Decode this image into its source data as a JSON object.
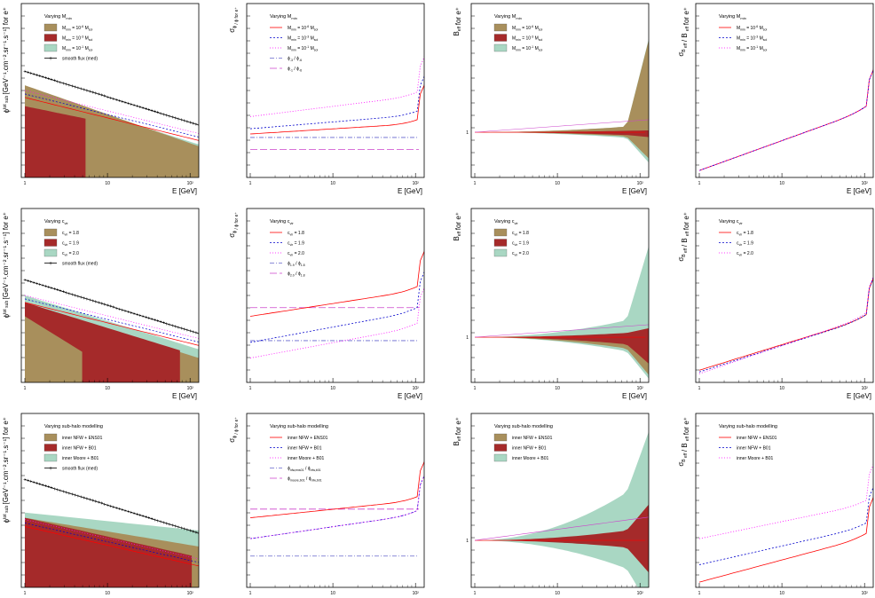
{
  "chart_data": [
    {
      "type": "area",
      "row": 0,
      "col": 0,
      "ylabel": "ϕ",
      "ylabel_parts": [
        "ϕ",
        "tot",
        "sub",
        "[GeV⁻¹.cm⁻².sr⁻¹.s⁻¹] for e⁺"
      ],
      "xlabel": "E [GeV]",
      "xticks": [
        "1",
        "10",
        "10²"
      ],
      "legend_title": "Varying M",
      "legend_title_sub": "min",
      "legend": [
        {
          "label": "M",
          "sub": "min",
          "rest": "= 10",
          "sup": "-6",
          "unit": "M",
          "unit_sub": "sol",
          "kind": "band",
          "color": "#A88F5C"
        },
        {
          "label": "M",
          "sub": "min",
          "rest": "= 10",
          "sup": "-3",
          "unit": "M",
          "unit_sub": "sol",
          "kind": "band",
          "color": "#A52A2A"
        },
        {
          "label": "M",
          "sub": "min",
          "rest": "= 10",
          "sup": "-1",
          "unit": "M",
          "unit_sub": "sol",
          "kind": "band",
          "color": "#A9D7C3"
        },
        {
          "label": "smooth flux (med)",
          "kind": "marker",
          "color": "#333333"
        }
      ]
    },
    {
      "type": "line",
      "row": 0,
      "col": 1,
      "ylabel": "σ",
      "ylabel_parts": [
        "σ",
        "ϕ",
        "/ ϕ for e⁺"
      ],
      "xlabel": "E [GeV]",
      "xticks": [
        "1",
        "10",
        "10²"
      ],
      "legend_title": "Varying M",
      "legend_title_sub": "min",
      "legend": [
        {
          "label": "M",
          "sub": "min",
          "rest": "= 10",
          "sup": "-6",
          "unit": "M",
          "unit_sub": "sol",
          "color": "#FF0000",
          "dash": ""
        },
        {
          "label": "M",
          "sub": "min",
          "rest": "= 10",
          "sup": "-3",
          "unit": "M",
          "unit_sub": "sol",
          "color": "#0000CC",
          "dash": "2,2"
        },
        {
          "label": "M",
          "sub": "min",
          "rest": "= 10",
          "sup": "-1",
          "unit": "M",
          "unit_sub": "sol",
          "color": "#FF00FF",
          "dash": "1,2"
        },
        {
          "label": "ϕ",
          "sub": "-3",
          "rest": "/ ϕ",
          "sup": "",
          "unit": "",
          "unit_sub": "-6",
          "color": "#6666CC",
          "dash": "5,2,1,2"
        },
        {
          "label": "ϕ",
          "sub": "-1",
          "rest": "/ ϕ",
          "sup": "",
          "unit": "",
          "unit_sub": "-6",
          "color": "#CC44CC",
          "dash": "8,3"
        }
      ]
    },
    {
      "type": "area",
      "row": 0,
      "col": 2,
      "ylabel": "B",
      "ylabel_parts": [
        "B",
        "eff",
        "for e⁺"
      ],
      "xlabel": "E [GeV]",
      "xticks": [
        "1",
        "10",
        "10²"
      ],
      "legend_title": "Varying M",
      "legend_title_sub": "min",
      "legend": [
        {
          "label": "M",
          "sub": "min",
          "rest": "= 10",
          "sup": "-6",
          "unit": "M",
          "unit_sub": "sol",
          "kind": "band",
          "color": "#A88F5C"
        },
        {
          "label": "M",
          "sub": "min",
          "rest": "= 10",
          "sup": "-3",
          "unit": "M",
          "unit_sub": "sol",
          "kind": "band",
          "color": "#A52A2A"
        },
        {
          "label": "M",
          "sub": "min",
          "rest": "= 10",
          "sup": "-1",
          "unit": "M",
          "unit_sub": "sol",
          "kind": "band",
          "color": "#A9D7C3"
        }
      ]
    },
    {
      "type": "line",
      "row": 0,
      "col": 3,
      "ylabel": "σ",
      "ylabel_parts": [
        "σ",
        "B",
        "eff",
        "/ B",
        "eff",
        "for e⁺"
      ],
      "xlabel": "E [GeV]",
      "xticks": [
        "1",
        "10",
        "10²"
      ],
      "legend_title": "Varying M",
      "legend_title_sub": "min",
      "legend": [
        {
          "label": "M",
          "sub": "min",
          "rest": "= 10",
          "sup": "-6",
          "unit": "M",
          "unit_sub": "sol",
          "color": "#FF0000",
          "dash": ""
        },
        {
          "label": "M",
          "sub": "min",
          "rest": "= 10",
          "sup": "-3",
          "unit": "M",
          "unit_sub": "sol",
          "color": "#0000CC",
          "dash": "2,2"
        },
        {
          "label": "M",
          "sub": "min",
          "rest": "= 10",
          "sup": "-1",
          "unit": "M",
          "unit_sub": "sol",
          "color": "#FF00FF",
          "dash": "1,2"
        }
      ]
    },
    {
      "type": "area",
      "row": 1,
      "col": 0,
      "ylabel": "ϕ",
      "ylabel_parts": [
        "ϕ",
        "tot",
        "sub",
        "[GeV⁻¹.cm⁻².sr⁻¹.s⁻¹] for e⁺"
      ],
      "xlabel": "E [GeV]",
      "xticks": [
        "1",
        "10",
        "10²"
      ],
      "legend_title": "Varying c",
      "legend_title_sub": "vir",
      "legend": [
        {
          "label": "c",
          "sub": "vir",
          "rest": "= 1.8",
          "kind": "band",
          "color": "#A88F5C"
        },
        {
          "label": "c",
          "sub": "vir",
          "rest": "= 1.9",
          "kind": "band",
          "color": "#A52A2A"
        },
        {
          "label": "c",
          "sub": "vir",
          "rest": "= 2.0",
          "kind": "band",
          "color": "#A9D7C3"
        },
        {
          "label": "smooth flux (med)",
          "kind": "marker",
          "color": "#333333"
        }
      ]
    },
    {
      "type": "line",
      "row": 1,
      "col": 1,
      "ylabel": "σ",
      "ylabel_parts": [
        "σ",
        "ϕ",
        "/ ϕ for e⁺"
      ],
      "xlabel": "E [GeV]",
      "xticks": [
        "1",
        "10",
        "10²"
      ],
      "legend_title": "Varying c",
      "legend_title_sub": "vir",
      "legend": [
        {
          "label": "c",
          "sub": "vir",
          "rest": "= 1.8",
          "color": "#FF0000",
          "dash": ""
        },
        {
          "label": "c",
          "sub": "vir",
          "rest": "= 1.9",
          "color": "#0000CC",
          "dash": "2,2"
        },
        {
          "label": "c",
          "sub": "vir",
          "rest": "= 2.0",
          "color": "#FF00FF",
          "dash": "1,2"
        },
        {
          "label": "ϕ",
          "sub": "1.9",
          "rest": "/ ϕ",
          "unit_sub": "1.8",
          "color": "#6666CC",
          "dash": "5,2,1,2"
        },
        {
          "label": "ϕ",
          "sub": "2.0",
          "rest": "/ ϕ",
          "unit_sub": "1.8",
          "color": "#CC44CC",
          "dash": "8,3"
        }
      ]
    },
    {
      "type": "area",
      "row": 1,
      "col": 2,
      "ylabel": "B",
      "ylabel_parts": [
        "B",
        "eff",
        "for e⁺"
      ],
      "xlabel": "E [GeV]",
      "xticks": [
        "1",
        "10",
        "10²"
      ],
      "legend_title": "Varying c",
      "legend_title_sub": "vir",
      "legend": [
        {
          "label": "c",
          "sub": "vir",
          "rest": "= 1.8",
          "kind": "band",
          "color": "#A88F5C"
        },
        {
          "label": "c",
          "sub": "vir",
          "rest": "= 1.9",
          "kind": "band",
          "color": "#A52A2A"
        },
        {
          "label": "c",
          "sub": "vir",
          "rest": "= 2.0",
          "kind": "band",
          "color": "#A9D7C3"
        }
      ]
    },
    {
      "type": "line",
      "row": 1,
      "col": 3,
      "ylabel": "σ",
      "ylabel_parts": [
        "σ",
        "B",
        "eff",
        "/ B",
        "eff",
        "for e⁺"
      ],
      "xlabel": "E [GeV]",
      "xticks": [
        "1",
        "10",
        "10²"
      ],
      "legend_title": "Varying c",
      "legend_title_sub": "vir",
      "legend": [
        {
          "label": "c",
          "sub": "vir",
          "rest": "= 1.8",
          "color": "#FF0000",
          "dash": ""
        },
        {
          "label": "c",
          "sub": "vir",
          "rest": "= 1.9",
          "color": "#0000CC",
          "dash": "2,2"
        },
        {
          "label": "c",
          "sub": "vir",
          "rest": "= 2.0",
          "color": "#FF00FF",
          "dash": "1,2"
        }
      ]
    },
    {
      "type": "area",
      "row": 2,
      "col": 0,
      "ylabel": "ϕ",
      "ylabel_parts": [
        "ϕ",
        "tot",
        "sub",
        "[GeV⁻¹.cm⁻².sr⁻¹.s⁻¹] for e⁺"
      ],
      "xlabel": "E [GeV]",
      "xticks": [
        "1",
        "10",
        "10²"
      ],
      "legend_title": "Varying sub-halo modelling",
      "legend": [
        {
          "label": "inner NFW + ENS01",
          "kind": "band",
          "color": "#A88F5C"
        },
        {
          "label": "inner NFW + B01",
          "kind": "band",
          "color": "#A52A2A"
        },
        {
          "label": "inner Moore + B01",
          "kind": "band",
          "color": "#A9D7C3"
        },
        {
          "label": "smooth flux (med)",
          "kind": "marker",
          "color": "#333333"
        }
      ]
    },
    {
      "type": "line",
      "row": 2,
      "col": 1,
      "ylabel": "σ",
      "ylabel_parts": [
        "σ",
        "ϕ",
        "/ ϕ for e⁺"
      ],
      "xlabel": "E [GeV]",
      "xticks": [
        "1",
        "10",
        "10²"
      ],
      "legend_title": "Varying sub-halo modelling",
      "legend": [
        {
          "label": "inner NFW + ENS01",
          "color": "#FF0000",
          "dash": ""
        },
        {
          "label": "inner NFW + B01",
          "color": "#0000CC",
          "dash": "2,2"
        },
        {
          "label": "inner Moore + B01",
          "color": "#FF00FF",
          "dash": "1,2"
        },
        {
          "label": "ϕ",
          "sub": "nfw,ens01",
          "rest": "/ ϕ",
          "unit_sub": "nfw,b01",
          "color": "#6666CC",
          "dash": "5,2,1,2"
        },
        {
          "label": "ϕ",
          "sub": "moore,b01",
          "rest": "/ ϕ",
          "unit_sub": "nfw,b01",
          "color": "#CC44CC",
          "dash": "8,3"
        }
      ]
    },
    {
      "type": "area",
      "row": 2,
      "col": 2,
      "ylabel": "B",
      "ylabel_parts": [
        "B",
        "eff",
        "for e⁺"
      ],
      "xlabel": "E [GeV]",
      "xticks": [
        "1",
        "10",
        "10²"
      ],
      "legend_title": "Varying sub-halo modelling",
      "legend": [
        {
          "label": "inner NFW + ENS01",
          "kind": "band",
          "color": "#A88F5C"
        },
        {
          "label": "inner NFW + B01",
          "kind": "band",
          "color": "#A52A2A"
        },
        {
          "label": "inner Moore + B01",
          "kind": "band",
          "color": "#A9D7C3"
        }
      ]
    },
    {
      "type": "line",
      "row": 2,
      "col": 3,
      "ylabel": "σ",
      "ylabel_parts": [
        "σ",
        "B",
        "eff",
        "/ B",
        "eff",
        "for e⁺"
      ],
      "xlabel": "E [GeV]",
      "xticks": [
        "1",
        "10",
        "10²"
      ],
      "legend_title": "Varying sub-halo modelling",
      "legend": [
        {
          "label": "inner NFW + ENS01",
          "color": "#FF0000",
          "dash": ""
        },
        {
          "label": "inner NFW + B01",
          "color": "#0000CC",
          "dash": "2,2"
        },
        {
          "label": "inner Moore + B01",
          "color": "#FF00FF",
          "dash": "1,2"
        }
      ]
    }
  ]
}
